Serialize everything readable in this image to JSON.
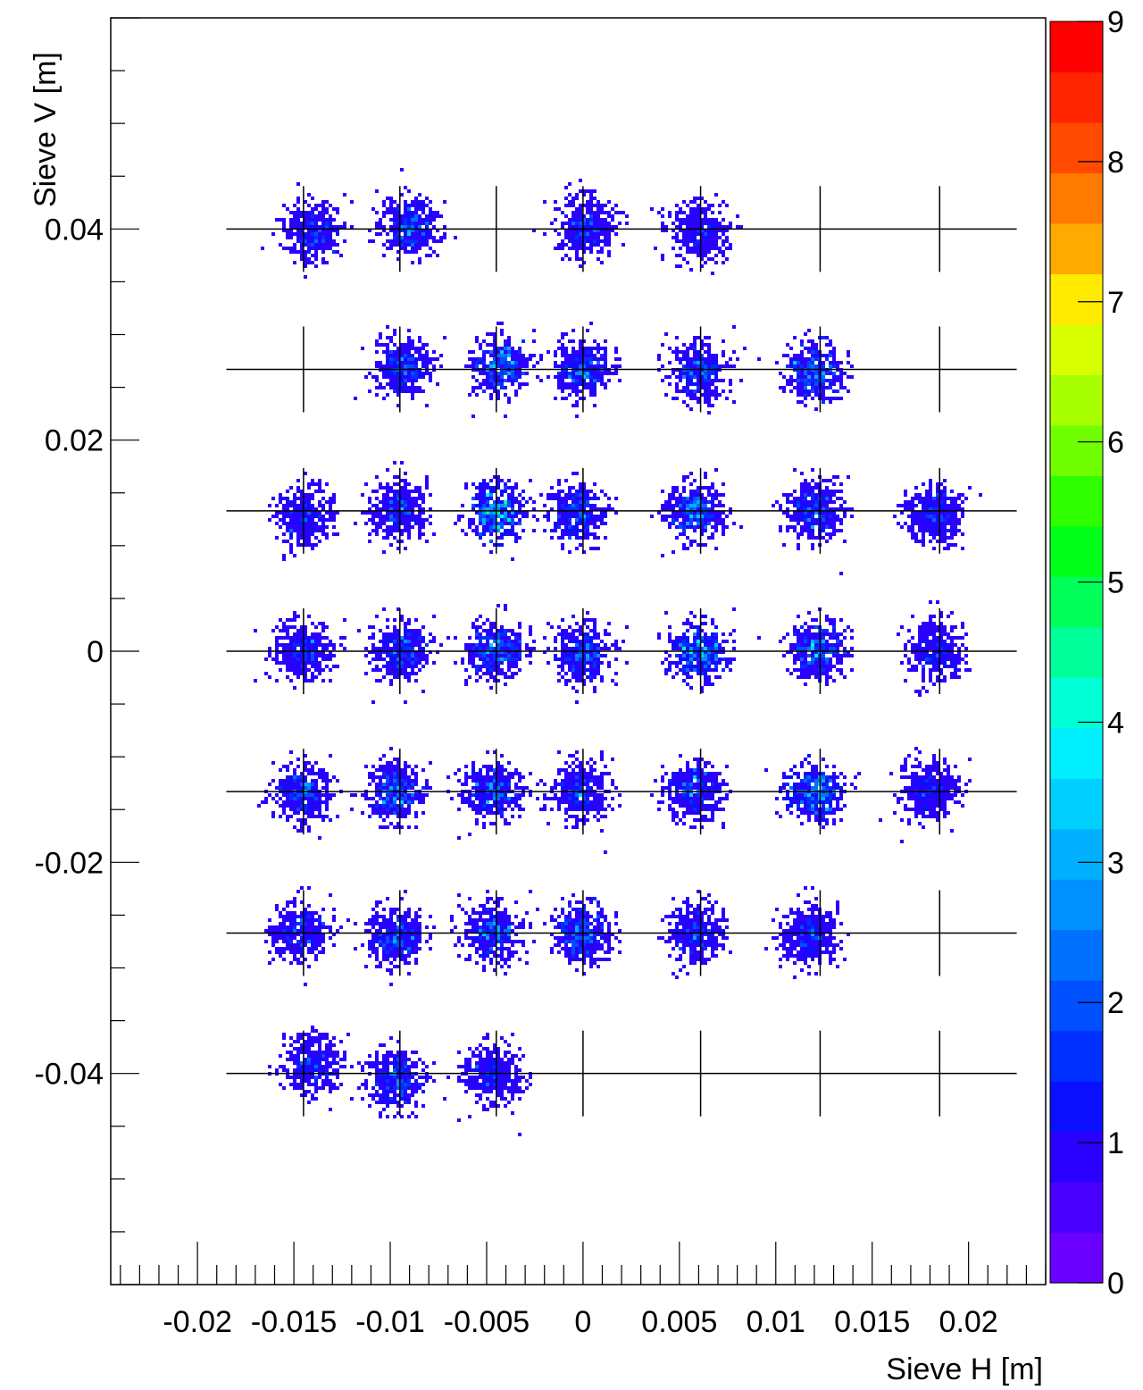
{
  "chart_data": {
    "type": "heatmap",
    "title": "",
    "xlabel": "Sieve H [m]",
    "ylabel": "Sieve V [m]",
    "xlim": [
      -0.0245,
      0.024
    ],
    "ylim": [
      -0.06,
      0.06
    ],
    "x_ticks": [
      -0.02,
      -0.015,
      -0.01,
      -0.005,
      0,
      0.005,
      0.01,
      0.015,
      0.02
    ],
    "x_tick_labels": [
      "-0.02",
      "-0.015",
      "-0.01",
      "-0.005",
      "0",
      "0.005",
      "0.01",
      "0.015",
      "0.02"
    ],
    "y_ticks": [
      -0.04,
      -0.02,
      0,
      0.02,
      0.04
    ],
    "y_tick_labels": [
      "-0.04",
      "-0.02",
      "0",
      "0.02",
      "0.04"
    ],
    "colorbar": {
      "min": 0,
      "max": 9,
      "ticks": [
        0,
        1,
        2,
        3,
        4,
        5,
        6,
        7,
        8,
        9
      ],
      "tick_labels": [
        "0",
        "1",
        "2",
        "3",
        "4",
        "5",
        "6",
        "7",
        "8",
        "9"
      ],
      "colors": [
        "#6a00ff",
        "#4a00ff",
        "#2a00ff",
        "#0a10ff",
        "#0030ff",
        "#0050ff",
        "#0070ff",
        "#0090ff",
        "#00b0ff",
        "#00d0ff",
        "#00f0ff",
        "#00ffd5",
        "#00ff9a",
        "#00ff5a",
        "#00ff1a",
        "#30ff00",
        "#70ff00",
        "#a8ff00",
        "#d8ff00",
        "#ffea00",
        "#ffaa00",
        "#ff7a00",
        "#ff4a00",
        "#ff2500",
        "#ff0000"
      ]
    },
    "grid": false,
    "sieve_holes": {
      "x": [
        -0.0145,
        -0.0095,
        -0.0045,
        0.0,
        0.0061,
        0.0123,
        0.0185
      ],
      "y": [
        0.04,
        0.0267,
        0.0133,
        0.0,
        -0.0133,
        -0.0267,
        -0.04
      ],
      "line_x_range": [
        -0.0185,
        0.0225
      ]
    },
    "clusters": [
      {
        "x": -0.014,
        "y": 0.0398,
        "peak": 2.5
      },
      {
        "x": -0.009,
        "y": 0.0402,
        "peak": 3.5
      },
      {
        "x": 0.0002,
        "y": 0.0402,
        "peak": 2.5
      },
      {
        "x": 0.006,
        "y": 0.0398,
        "peak": 2.0
      },
      {
        "x": -0.0093,
        "y": 0.0268,
        "peak": 3.0
      },
      {
        "x": -0.0043,
        "y": 0.027,
        "peak": 3.5
      },
      {
        "x": 0.0,
        "y": 0.0268,
        "peak": 3.5
      },
      {
        "x": 0.006,
        "y": 0.0265,
        "peak": 3.0
      },
      {
        "x": 0.012,
        "y": 0.0265,
        "peak": 3.5
      },
      {
        "x": -0.0145,
        "y": 0.0128,
        "peak": 2.5
      },
      {
        "x": -0.0095,
        "y": 0.0133,
        "peak": 3.5
      },
      {
        "x": -0.0045,
        "y": 0.0133,
        "peak": 4.5
      },
      {
        "x": -0.0003,
        "y": 0.013,
        "peak": 3.5
      },
      {
        "x": 0.0058,
        "y": 0.0133,
        "peak": 3.5
      },
      {
        "x": 0.012,
        "y": 0.0133,
        "peak": 3.0
      },
      {
        "x": 0.0183,
        "y": 0.013,
        "peak": 2.5
      },
      {
        "x": -0.0145,
        "y": 0.0,
        "peak": 3.0
      },
      {
        "x": -0.0095,
        "y": 0.0,
        "peak": 3.0
      },
      {
        "x": -0.0045,
        "y": 0.0,
        "peak": 3.5
      },
      {
        "x": 0.0,
        "y": -0.0002,
        "peak": 3.0
      },
      {
        "x": 0.006,
        "y": 0.0,
        "peak": 4.0
      },
      {
        "x": 0.0122,
        "y": 0.0,
        "peak": 4.0
      },
      {
        "x": 0.0183,
        "y": 0.0,
        "peak": 2.5
      },
      {
        "x": -0.0145,
        "y": -0.0133,
        "peak": 3.5
      },
      {
        "x": -0.0097,
        "y": -0.0133,
        "peak": 3.5
      },
      {
        "x": -0.0047,
        "y": -0.0133,
        "peak": 3.5
      },
      {
        "x": -0.0002,
        "y": -0.0133,
        "peak": 3.5
      },
      {
        "x": 0.0058,
        "y": -0.0133,
        "peak": 3.5
      },
      {
        "x": 0.012,
        "y": -0.0133,
        "peak": 3.5
      },
      {
        "x": 0.018,
        "y": -0.0133,
        "peak": 2.5
      },
      {
        "x": -0.0147,
        "y": -0.0267,
        "peak": 2.5
      },
      {
        "x": -0.0097,
        "y": -0.027,
        "peak": 3.0
      },
      {
        "x": -0.0047,
        "y": -0.0267,
        "peak": 3.5
      },
      {
        "x": 0.0,
        "y": -0.0267,
        "peak": 3.5
      },
      {
        "x": 0.0058,
        "y": -0.0267,
        "peak": 3.0
      },
      {
        "x": 0.0118,
        "y": -0.027,
        "peak": 3.0
      },
      {
        "x": -0.014,
        "y": -0.039,
        "peak": 2.5
      },
      {
        "x": -0.0097,
        "y": -0.0407,
        "peak": 3.0
      },
      {
        "x": -0.0047,
        "y": -0.04,
        "peak": 2.5
      }
    ]
  }
}
